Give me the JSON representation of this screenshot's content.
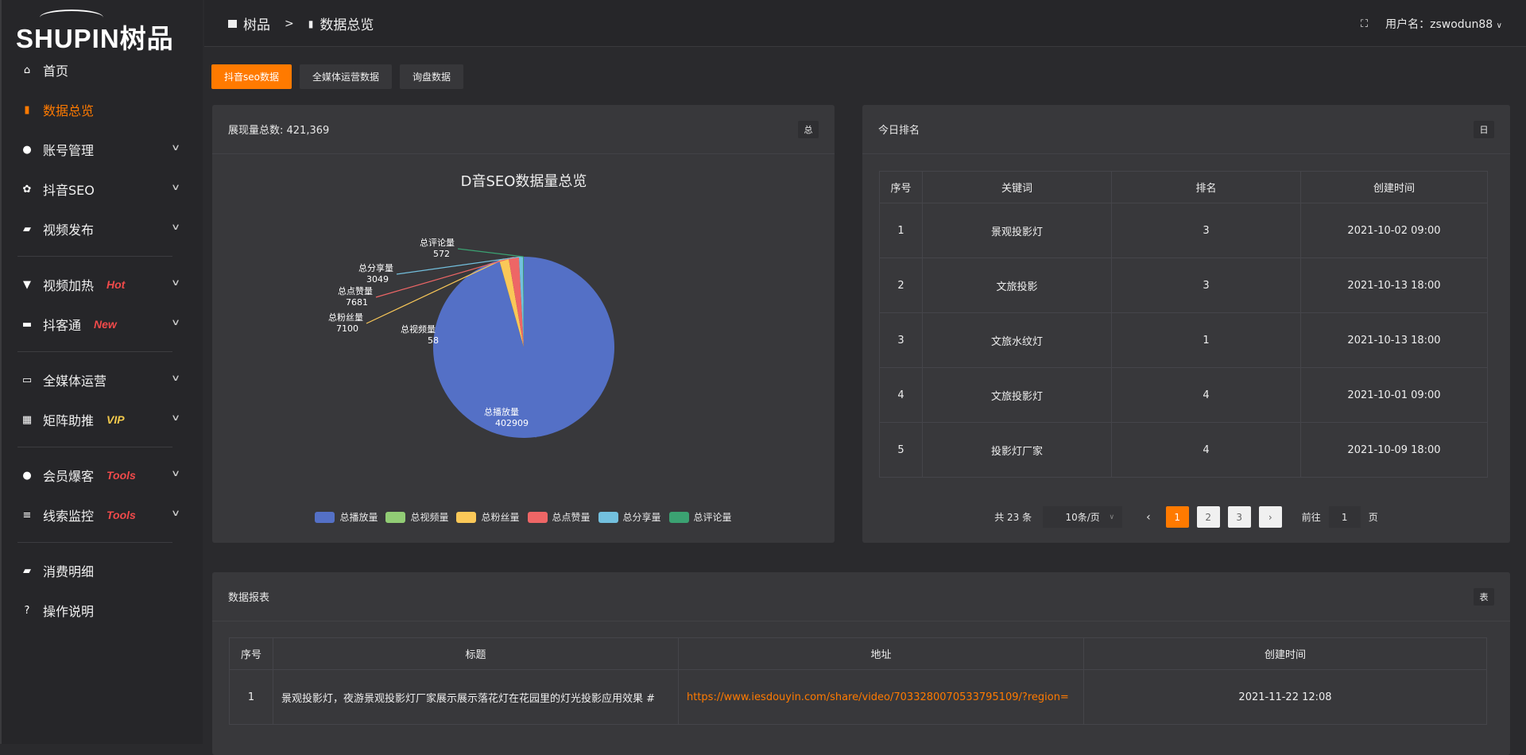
{
  "brand": {
    "logo_text": "SHUPIN树品"
  },
  "header": {
    "breadcrumb": [
      "树品",
      "数据总览"
    ],
    "breadcrumb_sep": ">",
    "user_label": "用户名：zswodun88",
    "fullscreen_icon": "fullscreen-icon"
  },
  "sidebar": {
    "items": [
      {
        "label": "首页",
        "icon": "home-icon"
      },
      {
        "label": "数据总览",
        "icon": "bar-chart-icon",
        "active": true
      },
      {
        "label": "账号管理",
        "icon": "user-icon",
        "chevron": true
      },
      {
        "label": "抖音SEO",
        "icon": "gear-icon",
        "chevron": true
      },
      {
        "label": "视频发布",
        "icon": "camera-icon",
        "chevron": true
      },
      {
        "label": "视频加热",
        "icon": "flag-icon",
        "chevron": true,
        "badge": "Hot"
      },
      {
        "label": "抖客通",
        "icon": "chat-icon",
        "chevron": true,
        "badge": "New"
      },
      {
        "label": "全媒体运营",
        "icon": "monitor-icon",
        "chevron": true
      },
      {
        "label": "矩阵助推",
        "icon": "grid-icon",
        "chevron": true,
        "badge": "VIP"
      },
      {
        "label": "会员爆客",
        "icon": "user-icon",
        "chevron": true,
        "badge": "Tools"
      },
      {
        "label": "线索监控",
        "icon": "sliders-icon",
        "chevron": true,
        "badge": "Tools"
      },
      {
        "label": "消费明细",
        "icon": "wallet-icon"
      },
      {
        "label": "操作说明",
        "icon": "help-icon"
      }
    ]
  },
  "colors": {
    "accent": "#ff7a00",
    "badge_red": "#f04a4a",
    "badge_vip": "#f2c94c"
  },
  "tabs": [
    "抖音seo数据",
    "全媒体运营数据",
    "询盘数据"
  ],
  "overview": {
    "title": "展现量总数: 421,369",
    "tag": "总"
  },
  "chart_data": {
    "type": "pie",
    "title": "D音SEO数据量总览",
    "categories": [
      "总播放量",
      "总视频量",
      "总粉丝量",
      "总点赞量",
      "总分享量",
      "总评论量"
    ],
    "values": [
      402909,
      58,
      7100,
      7681,
      3049,
      572
    ],
    "colors": [
      "#5470c6",
      "#91cc75",
      "#fac858",
      "#ee6666",
      "#73c0de",
      "#3ba272"
    ],
    "legend": "bottom"
  },
  "ranking": {
    "title": "今日排名",
    "tag": "日",
    "columns": [
      "序号",
      "关键词",
      "排名",
      "创建时间"
    ],
    "rows": [
      [
        "1",
        "景观投影灯",
        "3",
        "2021-10-02 09:00"
      ],
      [
        "2",
        "文旅投影",
        "3",
        "2021-10-13 18:00"
      ],
      [
        "3",
        "文旅水纹灯",
        "1",
        "2021-10-13 18:00"
      ],
      [
        "4",
        "文旅投影灯",
        "4",
        "2021-10-01 09:00"
      ],
      [
        "5",
        "投影灯厂家",
        "4",
        "2021-10-09 18:00"
      ]
    ],
    "pager": {
      "total": "共 23 条",
      "page_size": "10条/页",
      "pages": [
        "1",
        "2",
        "3"
      ],
      "current": "1",
      "goto_label": "前往",
      "goto_value": "1",
      "page_unit": "页"
    }
  },
  "report": {
    "title": "数据报表",
    "tag": "表",
    "columns": [
      "序号",
      "标题",
      "地址",
      "创建时间"
    ],
    "rows": [
      [
        "1",
        "景观投影灯，夜游景观投影灯厂家展示展示落花灯在花园里的灯光投影应用效果 #",
        "https://www.iesdouyin.com/share/video/7033280070533795109/?region=",
        "2021-11-22 12:08"
      ]
    ]
  }
}
